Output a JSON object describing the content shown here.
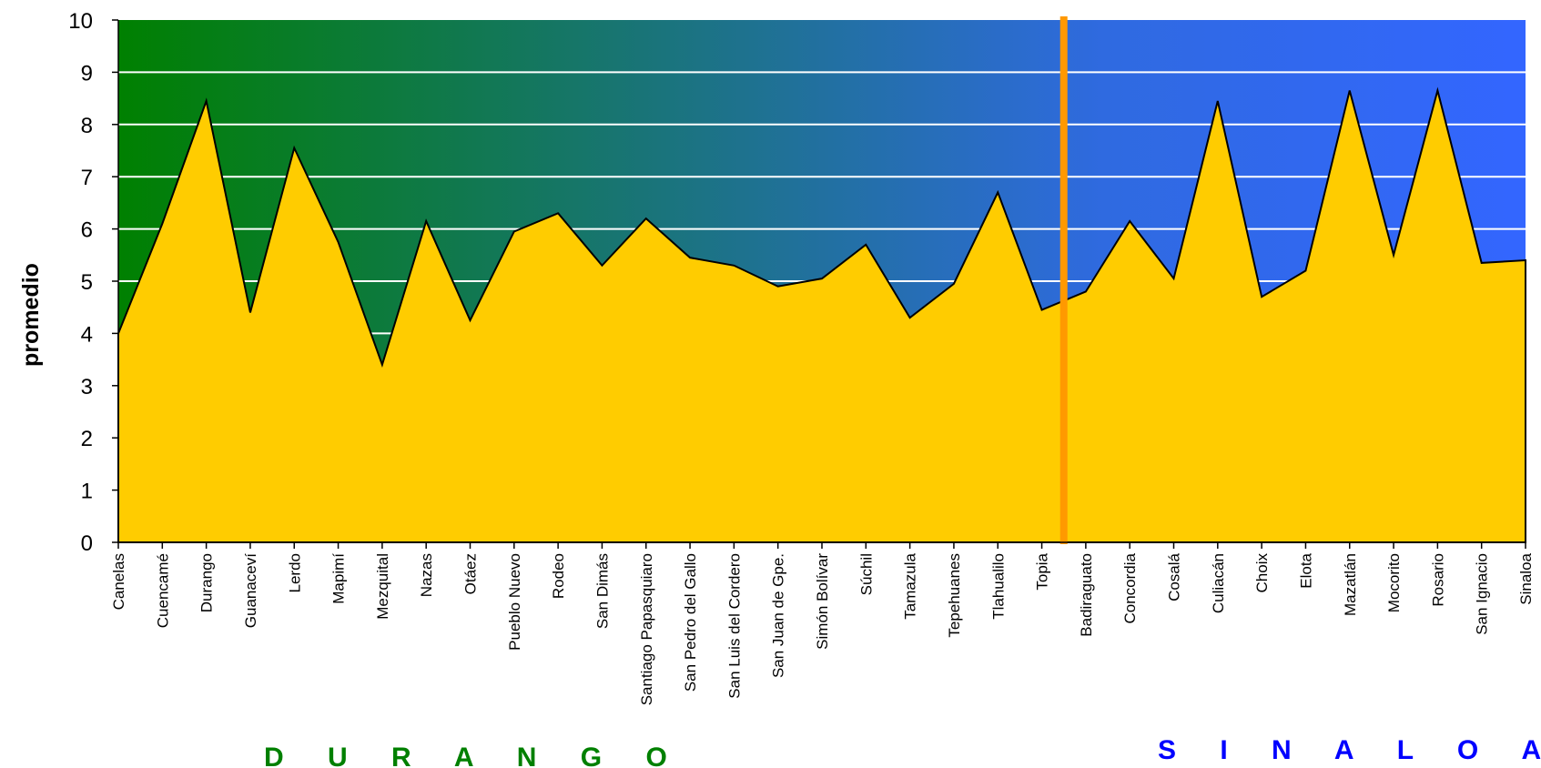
{
  "chart_data": {
    "type": "area",
    "ylabel": "promedio",
    "ylim": [
      0,
      10
    ],
    "yticks": [
      "0",
      "1",
      "2",
      "3",
      "4",
      "5",
      "6",
      "7",
      "8",
      "9",
      "10"
    ],
    "grid": true,
    "categories": [
      "Canelas",
      "Cuencamé",
      "Durango",
      "Guanaceví",
      "Lerdo",
      "Mapimí",
      "Mezquital",
      "Nazas",
      "Otáez",
      "Pueblo Nuevo",
      "Rodeo",
      "San Dimás",
      "Santiago Papasquiaro",
      "San Pedro del Gallo",
      "San Luis del Cordero",
      "San Juan de Gpe.",
      "Simón Bolívar",
      "Súchil",
      "Tamazula",
      "Tepehuanes",
      "Tlahualilo",
      "Topia",
      "Badiraguato",
      "Concordia",
      "Cosalá",
      "Culiacán",
      "Choix",
      "Elota",
      "Mazatlán",
      "Mocorito",
      "Rosario",
      "San Ignacio",
      "Sinaloa"
    ],
    "values": [
      4.0,
      6.1,
      8.45,
      4.4,
      7.55,
      5.75,
      3.4,
      6.15,
      4.25,
      5.95,
      6.3,
      5.3,
      6.2,
      5.45,
      5.3,
      4.9,
      5.05,
      5.7,
      4.3,
      4.95,
      6.7,
      4.45,
      4.8,
      6.15,
      5.05,
      8.45,
      4.7,
      5.2,
      8.65,
      5.5,
      8.65,
      5.35,
      5.4
    ],
    "fill_color": "#FFCC00",
    "background_gradient": [
      "#008000",
      "#3366FF"
    ],
    "divider_color": "#FF9900",
    "divider_between": [
      "Topia",
      "Badiraguato"
    ],
    "regions": [
      {
        "name": "D U R A N G O",
        "color": "#008000"
      },
      {
        "name": "S I N A L O A",
        "color": "#0000FF"
      }
    ]
  }
}
